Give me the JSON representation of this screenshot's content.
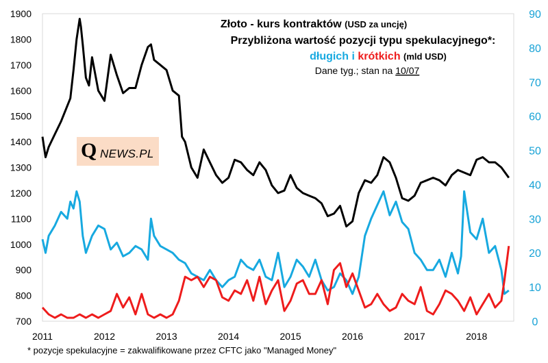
{
  "title": {
    "line1_main": "Złoto - kurs kontraktów",
    "line1_small": "(USD za uncję)",
    "line2": "Przybliżona wartość pozycji typu spekulacyjnego*:",
    "line3_long": "długich",
    "line3_and": "i",
    "line3_short": "krótkich",
    "line3_unit": "(mld USD)",
    "line4_prefix": "Dane tyg.; stan na",
    "line4_date": "10/07"
  },
  "logo": {
    "q": "Q",
    "rest": "NEWS.PL"
  },
  "footnote": "* pozycje spekulacyjne = zakwalifikowane przez CFTC jako \"Managed Money\"",
  "colors": {
    "gold": "#000000",
    "long": "#17a9e0",
    "short": "#ee1c1c"
  },
  "chart_data": {
    "type": "line",
    "x_ticks": [
      "2011",
      "2012",
      "2013",
      "2014",
      "2015",
      "2016",
      "2017",
      "2018"
    ],
    "y_left_ticks": [
      "700",
      "800",
      "900",
      "1000",
      "1100",
      "1200",
      "1300",
      "1400",
      "1500",
      "1600",
      "1700",
      "1800",
      "1900"
    ],
    "y_right_ticks": [
      "0",
      "10",
      "20",
      "30",
      "40",
      "50",
      "60",
      "70",
      "80",
      "90"
    ],
    "xlim": [
      2011,
      2018.6
    ],
    "ylim_left": [
      700,
      1900
    ],
    "ylim_right": [
      0,
      90
    ],
    "grid": false,
    "series": [
      {
        "axis": "left",
        "x": [
          2011.0,
          2011.05,
          2011.1,
          2011.2,
          2011.3,
          2011.4,
          2011.45,
          2011.5,
          2011.55,
          2011.6,
          2011.62,
          2011.65,
          2011.7,
          2011.75,
          2011.8,
          2011.9,
          2012.0,
          2012.1,
          2012.2,
          2012.3,
          2012.4,
          2012.5,
          2012.6,
          2012.7,
          2012.75,
          2012.8,
          2012.9,
          2013.0,
          2013.1,
          2013.2,
          2013.25,
          2013.3,
          2013.4,
          2013.5,
          2013.6,
          2013.7,
          2013.8,
          2013.9,
          2014.0,
          2014.1,
          2014.2,
          2014.3,
          2014.4,
          2014.5,
          2014.6,
          2014.7,
          2014.8,
          2014.9,
          2015.0,
          2015.1,
          2015.2,
          2015.3,
          2015.4,
          2015.5,
          2015.6,
          2015.7,
          2015.8,
          2015.9,
          2016.0,
          2016.1,
          2016.2,
          2016.3,
          2016.4,
          2016.5,
          2016.6,
          2016.7,
          2016.8,
          2016.9,
          2017.0,
          2017.1,
          2017.2,
          2017.3,
          2017.4,
          2017.5,
          2017.6,
          2017.7,
          2017.8,
          2017.9,
          2018.0,
          2018.1,
          2018.2,
          2018.3,
          2018.4,
          2018.52
        ],
        "values": [
          1420,
          1340,
          1380,
          1430,
          1480,
          1540,
          1570,
          1680,
          1800,
          1880,
          1850,
          1780,
          1650,
          1620,
          1730,
          1600,
          1560,
          1740,
          1660,
          1590,
          1610,
          1610,
          1700,
          1770,
          1780,
          1720,
          1700,
          1680,
          1600,
          1580,
          1420,
          1400,
          1300,
          1260,
          1370,
          1320,
          1270,
          1240,
          1260,
          1330,
          1320,
          1290,
          1270,
          1320,
          1290,
          1230,
          1200,
          1210,
          1270,
          1220,
          1200,
          1190,
          1180,
          1160,
          1110,
          1120,
          1150,
          1070,
          1090,
          1200,
          1250,
          1240,
          1270,
          1340,
          1320,
          1260,
          1180,
          1170,
          1190,
          1240,
          1250,
          1260,
          1250,
          1230,
          1270,
          1290,
          1280,
          1270,
          1330,
          1340,
          1320,
          1320,
          1300,
          1260
        ]
      },
      {
        "axis": "right",
        "x": [
          2011.0,
          2011.05,
          2011.1,
          2011.2,
          2011.3,
          2011.4,
          2011.45,
          2011.5,
          2011.55,
          2011.6,
          2011.65,
          2011.7,
          2011.8,
          2011.9,
          2012.0,
          2012.1,
          2012.2,
          2012.3,
          2012.4,
          2012.5,
          2012.6,
          2012.7,
          2012.75,
          2012.8,
          2012.9,
          2013.0,
          2013.1,
          2013.2,
          2013.3,
          2013.4,
          2013.5,
          2013.6,
          2013.7,
          2013.8,
          2013.9,
          2014.0,
          2014.1,
          2014.2,
          2014.3,
          2014.4,
          2014.5,
          2014.6,
          2014.7,
          2014.8,
          2014.9,
          2015.0,
          2015.1,
          2015.2,
          2015.3,
          2015.4,
          2015.5,
          2015.6,
          2015.7,
          2015.8,
          2015.9,
          2016.0,
          2016.1,
          2016.2,
          2016.3,
          2016.4,
          2016.5,
          2016.6,
          2016.7,
          2016.8,
          2016.9,
          2017.0,
          2017.1,
          2017.2,
          2017.3,
          2017.4,
          2017.5,
          2017.6,
          2017.7,
          2017.75,
          2017.8,
          2017.9,
          2018.0,
          2018.1,
          2018.2,
          2018.3,
          2018.4,
          2018.45,
          2018.52
        ],
        "values": [
          24,
          20,
          25,
          28,
          32,
          30,
          35,
          33,
          38,
          35,
          25,
          20,
          25,
          28,
          27,
          21,
          23,
          19,
          20,
          22,
          21,
          18,
          30,
          25,
          22,
          21,
          20,
          18,
          17,
          14,
          13,
          12,
          15,
          12,
          10,
          12,
          13,
          18,
          16,
          15,
          18,
          13,
          12,
          20,
          10,
          13,
          18,
          16,
          13,
          18,
          12,
          9,
          10,
          14,
          12,
          8,
          13,
          25,
          30,
          34,
          38,
          31,
          35,
          29,
          27,
          20,
          18,
          15,
          15,
          18,
          13,
          20,
          14,
          19,
          38,
          26,
          24,
          30,
          20,
          22,
          15,
          8,
          9
        ]
      },
      {
        "axis": "right",
        "x": [
          2011.0,
          2011.1,
          2011.2,
          2011.3,
          2011.4,
          2011.5,
          2011.6,
          2011.7,
          2011.8,
          2011.9,
          2012.0,
          2012.1,
          2012.2,
          2012.3,
          2012.4,
          2012.5,
          2012.6,
          2012.7,
          2012.8,
          2012.9,
          2013.0,
          2013.1,
          2013.2,
          2013.3,
          2013.4,
          2013.5,
          2013.6,
          2013.7,
          2013.8,
          2013.9,
          2014.0,
          2014.1,
          2014.2,
          2014.3,
          2014.4,
          2014.5,
          2014.6,
          2014.7,
          2014.8,
          2014.9,
          2015.0,
          2015.1,
          2015.2,
          2015.3,
          2015.4,
          2015.5,
          2015.6,
          2015.7,
          2015.8,
          2015.9,
          2016.0,
          2016.1,
          2016.2,
          2016.3,
          2016.4,
          2016.5,
          2016.6,
          2016.7,
          2016.8,
          2016.9,
          2017.0,
          2017.1,
          2017.2,
          2017.3,
          2017.4,
          2017.5,
          2017.6,
          2017.7,
          2017.8,
          2017.9,
          2018.0,
          2018.1,
          2018.2,
          2018.3,
          2018.4,
          2018.45,
          2018.52
        ],
        "values": [
          4,
          2,
          1,
          2,
          1,
          1,
          2,
          1,
          2,
          1,
          2,
          3,
          8,
          4,
          7,
          2,
          8,
          2,
          1,
          2,
          1,
          2,
          6,
          13,
          12,
          13,
          10,
          13,
          12,
          7,
          6,
          9,
          8,
          12,
          6,
          13,
          5,
          9,
          12,
          3,
          6,
          11,
          12,
          8,
          8,
          12,
          5,
          15,
          17,
          10,
          14,
          9,
          4,
          5,
          8,
          5,
          3,
          4,
          8,
          6,
          5,
          10,
          3,
          2,
          5,
          9,
          8,
          6,
          3,
          7,
          2,
          5,
          8,
          4,
          6,
          12,
          22
        ]
      }
    ]
  }
}
